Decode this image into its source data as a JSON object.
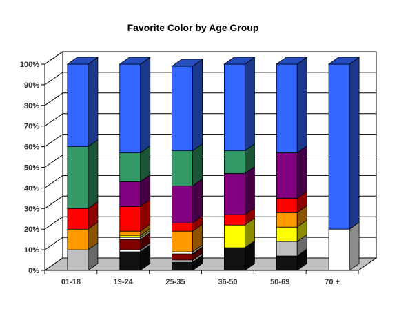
{
  "chart_data": {
    "type": "bar",
    "stacked": true,
    "percent": true,
    "three_d": true,
    "title": "Favorite Color by Age Group",
    "xlabel": "",
    "ylabel": "",
    "ylim": [
      0,
      100
    ],
    "yticks": [
      "0%",
      "10%",
      "20%",
      "30%",
      "40%",
      "50%",
      "60%",
      "70%",
      "80%",
      "90%",
      "100%"
    ],
    "categories": [
      "01-18",
      "19-24",
      "25-35",
      "36-50",
      "50-69",
      "70 +"
    ],
    "grid": true,
    "legend": "none",
    "series": [
      {
        "color": "#111111",
        "values": [
          0,
          9,
          4,
          11,
          7,
          0
        ]
      },
      {
        "color": "#ffffff",
        "values": [
          0,
          1,
          1,
          0,
          0,
          20
        ]
      },
      {
        "color": "#c0c0c0",
        "values": [
          10,
          0,
          0,
          0,
          7,
          0
        ]
      },
      {
        "color": "#800000",
        "values": [
          0,
          5,
          3,
          0,
          0,
          0
        ]
      },
      {
        "color": "#ffffff",
        "values": [
          0,
          1,
          1,
          0,
          0,
          0
        ]
      },
      {
        "color": "#ffff00",
        "values": [
          0,
          1,
          0,
          11,
          7,
          0
        ]
      },
      {
        "color": "#ff9900",
        "values": [
          10,
          2,
          10,
          0,
          7,
          0
        ]
      },
      {
        "color": "#ff0000",
        "values": [
          10,
          12,
          4,
          5,
          7,
          0
        ]
      },
      {
        "color": "#800080",
        "values": [
          0,
          12,
          18,
          20,
          22,
          0
        ]
      },
      {
        "color": "#339966",
        "values": [
          30,
          14,
          17,
          11,
          0,
          0
        ]
      },
      {
        "color": "#3366ff",
        "values": [
          40,
          43,
          41,
          42,
          43,
          80
        ]
      }
    ]
  }
}
